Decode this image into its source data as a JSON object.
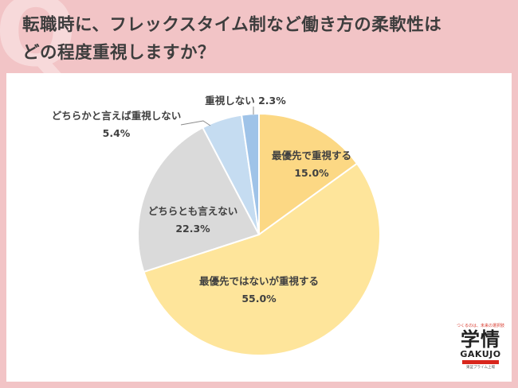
{
  "title_lines": [
    "転職時に、フレックスタイム制など働き方の柔軟性は",
    "どの程度重視しますか？"
  ],
  "logo": {
    "tagline": "つくるのは、未来の選択肢",
    "kanji": "学情",
    "roman": "GAKUJO",
    "sub": "東証プライム上場"
  },
  "chart_data": {
    "type": "pie",
    "start_angle_deg": 0,
    "direction": "clockwise",
    "unit": "%",
    "slices": [
      {
        "label": "最優先で重視する",
        "value": 15.0,
        "value_label": "15.0%",
        "color": "#fcd884"
      },
      {
        "label": "最優先ではないが重視する",
        "value": 55.0,
        "value_label": "55.0%",
        "color": "#fee59b"
      },
      {
        "label": "どちらとも言えない",
        "value": 22.3,
        "value_label": "22.3%",
        "color": "#dadada"
      },
      {
        "label": "どちらかと言えば重視しない",
        "value": 5.4,
        "value_label": "5.4%",
        "color": "#c5dcf1"
      },
      {
        "label": "重視しない",
        "value": 2.3,
        "value_label": "2.3%",
        "color": "#9fc3e8"
      }
    ]
  }
}
